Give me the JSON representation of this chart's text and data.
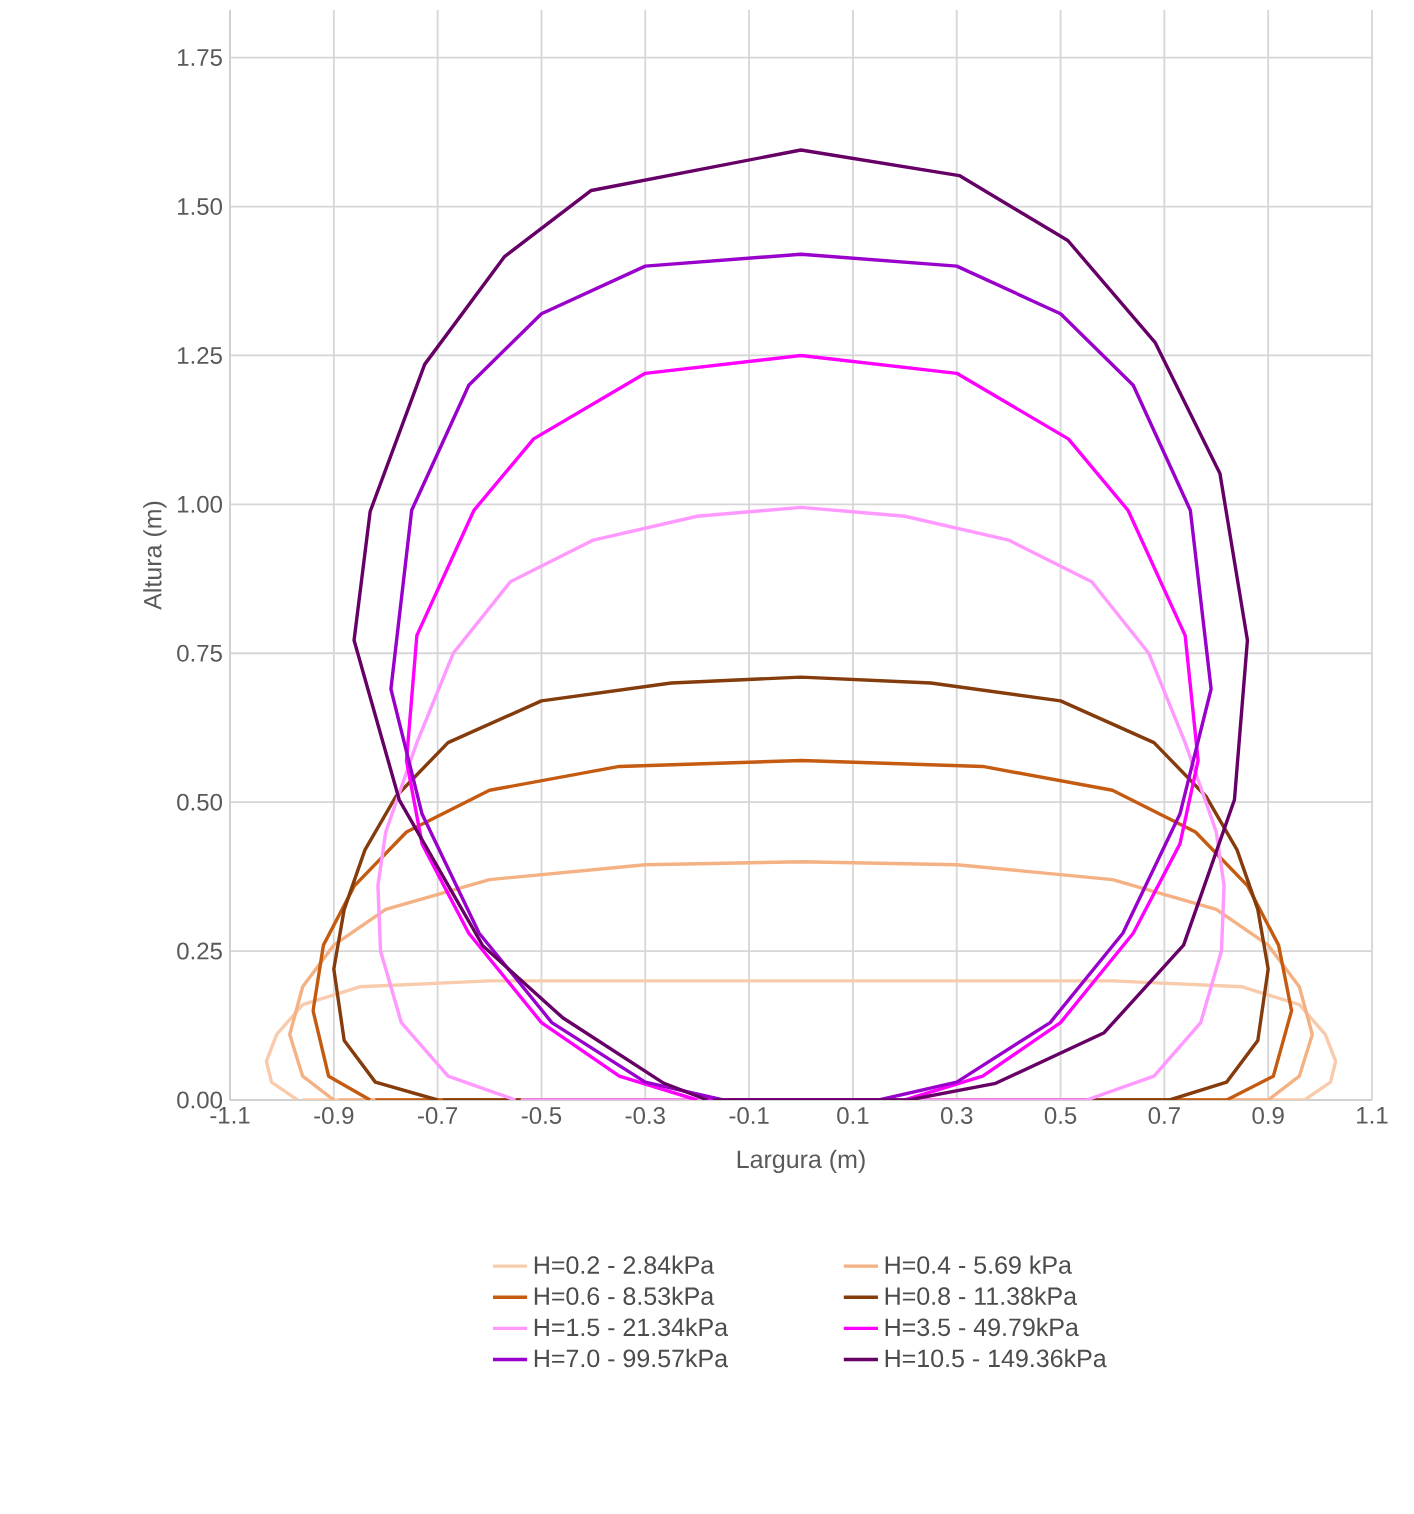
{
  "chart_data": {
    "type": "line",
    "xlabel": "Largura (m)",
    "ylabel": "Altura (m)",
    "xlim": [
      -1.1,
      1.1
    ],
    "ylim": [
      0,
      1.83
    ],
    "xticks": [
      -1.1,
      -0.9,
      -0.7,
      -0.5,
      -0.3,
      -0.1,
      0.1,
      0.3,
      0.5,
      0.7,
      0.9,
      1.1
    ],
    "yticks": [
      {
        "value": 0,
        "label": "0.00"
      },
      {
        "value": 0.25,
        "label": "0.25"
      },
      {
        "value": 0.5,
        "label": "0.50"
      },
      {
        "value": 0.75,
        "label": "0.75"
      },
      {
        "value": 1.0,
        "label": "1.00"
      },
      {
        "value": 1.25,
        "label": "1.25"
      },
      {
        "value": 1.5,
        "label": "1.50"
      },
      {
        "value": 1.75,
        "label": "1.75"
      }
    ],
    "grid": true,
    "legend": "bottom",
    "series": [
      {
        "name": "H=0.2 - 2.84kPa",
        "color": "#f8cbad",
        "x": [
          -0.97,
          -1.02,
          -1.03,
          -1.01,
          -0.96,
          -0.85,
          -0.6,
          0,
          0.6,
          0.85,
          0.96,
          1.01,
          1.03,
          1.02,
          0.97,
          -0.96
        ],
        "values": [
          0,
          0.03,
          0.065,
          0.11,
          0.16,
          0.19,
          0.2,
          0.2,
          0.2,
          0.19,
          0.16,
          0.11,
          0.065,
          0.03,
          0,
          0
        ]
      },
      {
        "name": "H=0.4 - 5.69 kPa",
        "color": "#f4b183",
        "x": [
          -0.9,
          -0.96,
          -0.985,
          -0.96,
          -0.9,
          -0.8,
          -0.6,
          -0.3,
          0,
          0.3,
          0.6,
          0.8,
          0.9,
          0.96,
          0.985,
          0.96,
          0.9,
          -0.89
        ],
        "values": [
          0,
          0.04,
          0.11,
          0.19,
          0.26,
          0.32,
          0.37,
          0.395,
          0.4,
          0.395,
          0.37,
          0.32,
          0.26,
          0.19,
          0.11,
          0.04,
          0,
          0
        ]
      },
      {
        "name": "H=0.6 - 8.53kPa",
        "color": "#c55a11",
        "x": [
          -0.83,
          -0.91,
          -0.94,
          -0.92,
          -0.86,
          -0.76,
          -0.6,
          -0.35,
          0,
          0.35,
          0.6,
          0.76,
          0.86,
          0.92,
          0.945,
          0.91,
          0.82,
          -0.82
        ],
        "values": [
          0,
          0.04,
          0.15,
          0.26,
          0.36,
          0.45,
          0.52,
          0.56,
          0.57,
          0.56,
          0.52,
          0.45,
          0.36,
          0.26,
          0.15,
          0.04,
          0,
          0
        ]
      },
      {
        "name": "H=0.8 - 11.38kPa",
        "color": "#843c0c",
        "x": [
          -0.7,
          -0.82,
          -0.88,
          -0.9,
          -0.88,
          -0.84,
          -0.78,
          -0.68,
          -0.5,
          -0.25,
          0,
          0.25,
          0.5,
          0.68,
          0.78,
          0.84,
          0.88,
          0.9,
          0.88,
          0.82,
          0.71,
          -0.69
        ],
        "values": [
          0,
          0.03,
          0.1,
          0.22,
          0.32,
          0.42,
          0.51,
          0.6,
          0.67,
          0.7,
          0.71,
          0.7,
          0.67,
          0.6,
          0.51,
          0.42,
          0.32,
          0.22,
          0.1,
          0.03,
          0,
          0
        ]
      },
      {
        "name": "H=1.5 - 21.34kPa",
        "color": "#ff99ff",
        "x": [
          -0.55,
          -0.68,
          -0.77,
          -0.81,
          -0.815,
          -0.8,
          -0.74,
          -0.67,
          -0.56,
          -0.4,
          -0.2,
          0,
          0.2,
          0.4,
          0.56,
          0.67,
          0.74,
          0.8,
          0.815,
          0.81,
          0.77,
          0.68,
          0.55,
          -0.54
        ],
        "values": [
          0,
          0.04,
          0.13,
          0.25,
          0.36,
          0.45,
          0.6,
          0.75,
          0.87,
          0.94,
          0.98,
          0.995,
          0.98,
          0.94,
          0.87,
          0.75,
          0.6,
          0.45,
          0.36,
          0.25,
          0.13,
          0.04,
          0,
          0
        ]
      },
      {
        "name": "H=3.5 - 49.79kPa",
        "color": "#ff00ff",
        "x": [
          -0.2,
          -0.35,
          -0.5,
          -0.64,
          -0.73,
          -0.76,
          -0.74,
          -0.63,
          -0.515,
          -0.3,
          0,
          0.3,
          0.515,
          0.63,
          0.74,
          0.765,
          0.73,
          0.64,
          0.5,
          0.35,
          0.2,
          -0.19
        ],
        "values": [
          0,
          0.04,
          0.13,
          0.28,
          0.43,
          0.57,
          0.78,
          0.99,
          1.11,
          1.22,
          1.25,
          1.22,
          1.11,
          0.99,
          0.78,
          0.57,
          0.43,
          0.28,
          0.13,
          0.04,
          0,
          0
        ]
      },
      {
        "name": "H=7.0 - 99.57kPa",
        "color": "#9900cc",
        "x": [
          -0.15,
          -0.3,
          -0.48,
          -0.62,
          -0.73,
          -0.79,
          -0.75,
          -0.64,
          -0.5,
          -0.3,
          0,
          0.3,
          0.5,
          0.64,
          0.75,
          0.79,
          0.73,
          0.62,
          0.48,
          0.3,
          0.15,
          -0.14
        ],
        "values": [
          0,
          0.03,
          0.13,
          0.28,
          0.48,
          0.69,
          0.99,
          1.2,
          1.32,
          1.4,
          1.42,
          1.4,
          1.32,
          1.2,
          0.99,
          0.69,
          0.48,
          0.28,
          0.13,
          0.03,
          0,
          0
        ]
      },
      {
        "name": "H=10.5 - 149.36kPa",
        "color": "#660066",
        "x": [
          -0.18,
          -0.264,
          -0.459,
          -0.613,
          -0.774,
          -0.861,
          -0.83,
          -0.725,
          -0.571,
          -0.404,
          0,
          0.305,
          0.514,
          0.682,
          0.807,
          0.86,
          0.835,
          0.737,
          0.584,
          0.375,
          0.207,
          -0.17
        ],
        "values": [
          0,
          0.028,
          0.138,
          0.259,
          0.504,
          0.772,
          0.988,
          1.235,
          1.416,
          1.527,
          1.595,
          1.552,
          1.443,
          1.272,
          1.052,
          0.772,
          0.504,
          0.26,
          0.113,
          0.028,
          0,
          0
        ]
      }
    ]
  }
}
